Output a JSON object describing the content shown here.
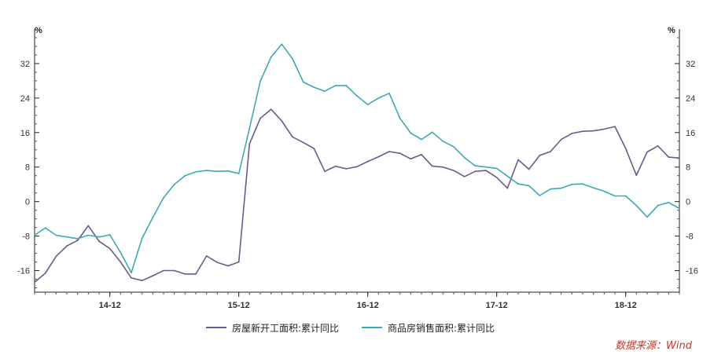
{
  "chart_data": {
    "type": "line",
    "y_unit_left": "%",
    "y_unit_right": "%",
    "ylim": [
      -21,
      40
    ],
    "yticks": [
      -16,
      -8,
      0,
      8,
      16,
      24,
      32
    ],
    "ytick_labels": [
      "-16",
      "-8",
      "0",
      "8",
      "16",
      "24",
      "32"
    ],
    "x_index_range": [
      0,
      60
    ],
    "xticks": [
      {
        "label": "14-12",
        "index": 7
      },
      {
        "label": "15-12",
        "index": 19
      },
      {
        "label": "16-12",
        "index": 31
      },
      {
        "label": "17-12",
        "index": 43
      },
      {
        "label": "18-12",
        "index": 55
      }
    ],
    "grid": false,
    "legend_position": "bottom",
    "colors": {
      "new_construction": "#6a5a8e",
      "sales_area": "#3ba9b6"
    },
    "series": [
      {
        "name": "房屋新开工面积:累计同比",
        "color": "#6a5a8e",
        "x": [
          0,
          1,
          2,
          3,
          4,
          5,
          6,
          7,
          8,
          9,
          10,
          11,
          12,
          13,
          14,
          15,
          16,
          17,
          18,
          19,
          20,
          21,
          22,
          23,
          24,
          25,
          26,
          27,
          28,
          29,
          30,
          31,
          32,
          33,
          34,
          35,
          36,
          37,
          38,
          39,
          40,
          41,
          42,
          43,
          44,
          45,
          46,
          47,
          48,
          49,
          50,
          51,
          52,
          53,
          54,
          55,
          56,
          57,
          58,
          59,
          60
        ],
        "values": [
          -18.7,
          -16.6,
          -12.7,
          -10.3,
          -9.0,
          -5.6,
          -9.2,
          -10.9,
          -14.0,
          -17.7,
          -18.3,
          -17.2,
          -16.0,
          -16.0,
          -16.8,
          -16.8,
          -12.6,
          -14.1,
          -14.9,
          -14.0,
          13.4,
          19.3,
          21.4,
          18.7,
          15.0,
          13.7,
          12.3,
          7.0,
          8.2,
          7.6,
          8.1,
          9.3,
          10.4,
          11.6,
          11.2,
          9.9,
          10.9,
          8.2,
          8.0,
          7.2,
          5.8,
          7.0,
          7.2,
          5.6,
          3.1,
          9.7,
          7.5,
          10.7,
          11.6,
          14.4,
          15.8,
          16.3,
          16.4,
          16.8,
          17.4,
          12.3,
          6.1,
          11.5,
          12.9,
          10.3,
          10.1
        ]
      },
      {
        "name": "商品房销售面积:累计同比",
        "color": "#3ba9b6",
        "x": [
          0,
          1,
          2,
          3,
          4,
          5,
          6,
          7,
          8,
          9,
          10,
          11,
          12,
          13,
          14,
          15,
          16,
          17,
          18,
          19,
          20,
          21,
          22,
          23,
          24,
          25,
          26,
          27,
          28,
          29,
          30,
          31,
          32,
          33,
          34,
          35,
          36,
          37,
          38,
          39,
          40,
          41,
          42,
          43,
          44,
          45,
          46,
          47,
          48,
          49,
          50,
          51,
          52,
          53,
          54,
          55,
          56,
          57,
          58,
          59,
          60
        ],
        "values": [
          -7.8,
          -6.1,
          -7.8,
          -8.2,
          -8.6,
          -7.8,
          -8.2,
          -7.7,
          -11.8,
          -16.5,
          -8.5,
          -3.7,
          0.9,
          4.0,
          6.0,
          6.9,
          7.2,
          7.0,
          7.1,
          6.5,
          17.0,
          27.9,
          33.5,
          36.5,
          33.1,
          27.7,
          26.5,
          25.6,
          26.9,
          26.9,
          24.5,
          22.5,
          24.0,
          25.1,
          19.3,
          15.9,
          14.4,
          16.1,
          14.0,
          12.7,
          10.2,
          8.3,
          8.0,
          7.7,
          5.9,
          4.1,
          3.7,
          1.4,
          2.9,
          3.1,
          4.0,
          4.1,
          3.2,
          2.4,
          1.3,
          1.3,
          -0.9,
          -3.6,
          -0.9,
          -0.2,
          -1.6
        ]
      }
    ],
    "source_note": "数据来源：Wind"
  }
}
